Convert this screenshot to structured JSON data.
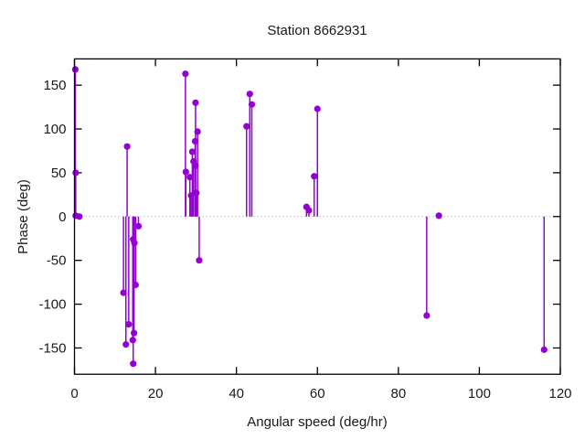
{
  "title": "Station 8662931",
  "colors": {
    "marker": "#9400d3",
    "border": "#000000",
    "zero_line": "#9a9a9a",
    "text": "#1a1a1a",
    "background": "#ffffff"
  },
  "chart_data": {
    "type": "scatter",
    "style": "impulses-with-points",
    "title": "Station 8662931",
    "xlabel": "Angular speed (deg/hr)",
    "ylabel": "Phase (deg)",
    "xlim": [
      0,
      120
    ],
    "ylim": [
      -180,
      180
    ],
    "xticks": [
      0,
      20,
      40,
      60,
      80,
      100,
      120
    ],
    "yticks": [
      -150,
      -100,
      -50,
      0,
      50,
      100,
      150
    ],
    "zero_line_y": 0,
    "grid": false,
    "legend": "none",
    "marker_color": "#9400d3",
    "points": [
      [
        0.2,
        168
      ],
      [
        0.3,
        50
      ],
      [
        0.3,
        1
      ],
      [
        1.2,
        0
      ],
      [
        12.1,
        -87
      ],
      [
        12.7,
        -146
      ],
      [
        13.0,
        80
      ],
      [
        13.4,
        -123
      ],
      [
        14.4,
        -141
      ],
      [
        14.5,
        -26
      ],
      [
        14.5,
        -168
      ],
      [
        14.7,
        -133
      ],
      [
        14.8,
        -30
      ],
      [
        15.1,
        -78
      ],
      [
        15.8,
        -11
      ],
      [
        27.4,
        163
      ],
      [
        27.5,
        51
      ],
      [
        28.5,
        45
      ],
      [
        28.8,
        24
      ],
      [
        29.1,
        74
      ],
      [
        29.4,
        63
      ],
      [
        29.8,
        86
      ],
      [
        29.9,
        130
      ],
      [
        29.9,
        58
      ],
      [
        30.1,
        27
      ],
      [
        30.4,
        97
      ],
      [
        30.8,
        -50
      ],
      [
        42.5,
        103
      ],
      [
        43.3,
        140
      ],
      [
        43.8,
        128
      ],
      [
        57.3,
        11
      ],
      [
        57.9,
        7
      ],
      [
        59.2,
        46
      ],
      [
        60.0,
        123
      ],
      [
        87.0,
        -113
      ],
      [
        90.0,
        1
      ],
      [
        116.0,
        -152
      ]
    ]
  }
}
